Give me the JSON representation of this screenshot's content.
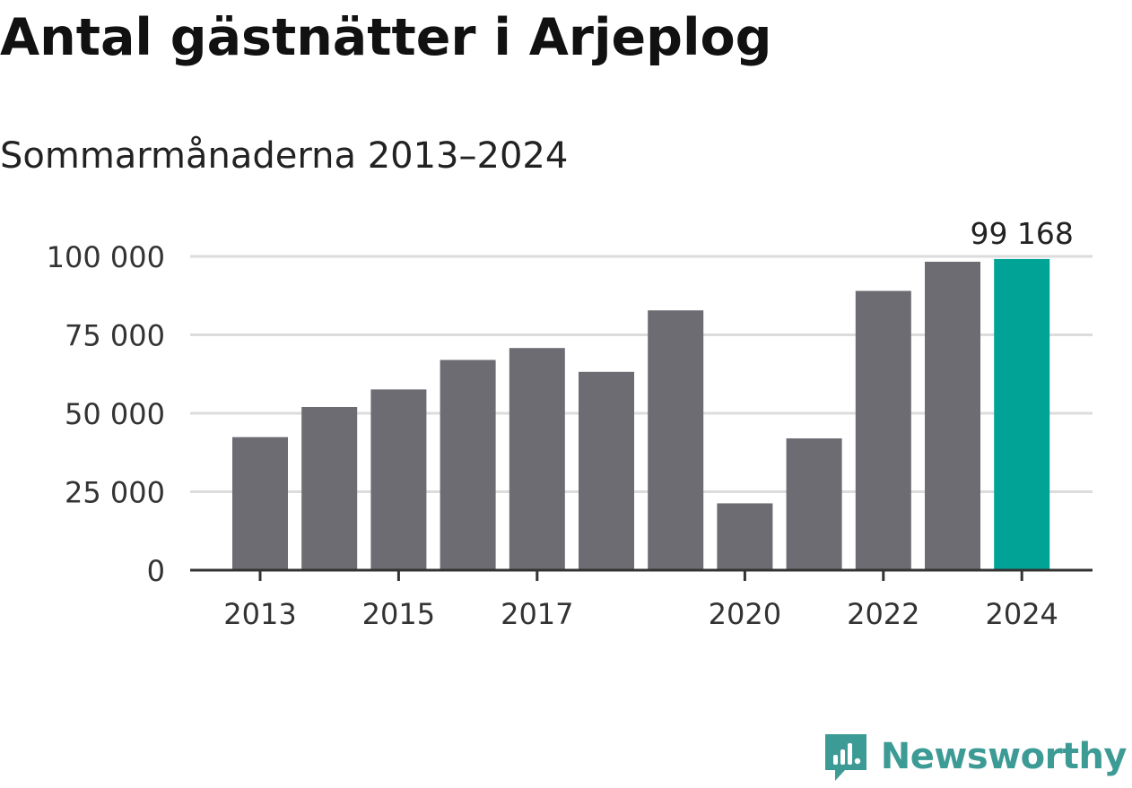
{
  "header": {
    "title": "Antal gästnätter i Arjeplog",
    "subtitle": "Sommarmånaderna 2013–2024"
  },
  "colors": {
    "bar": "#6d6c72",
    "highlight": "#00a396",
    "grid": "#dcdcdc",
    "axis": "#333333",
    "brand": "#3d9b96"
  },
  "chart_data": {
    "type": "bar",
    "categories": [
      "2013",
      "2014",
      "2015",
      "2016",
      "2017",
      "2018",
      "2019",
      "2020",
      "2021",
      "2022",
      "2023",
      "2024"
    ],
    "values": [
      42400,
      52000,
      57600,
      67000,
      70800,
      63200,
      82800,
      21300,
      42000,
      89000,
      98300,
      99168
    ],
    "x_tick_labels": [
      "2013",
      "",
      "2015",
      "",
      "2017",
      "",
      "",
      "2020",
      "",
      "2022",
      "",
      "2024"
    ],
    "y_ticks": [
      0,
      25000,
      50000,
      75000,
      100000
    ],
    "y_tick_labels": [
      "0",
      "25 000",
      "50 000",
      "75 000",
      "100 000"
    ],
    "ylim": [
      0,
      100000
    ],
    "highlight_index": 11,
    "data_label": "99 168",
    "grid": true,
    "xlabel": "",
    "ylabel": ""
  },
  "brand": {
    "name": "Newsworthy",
    "logo_icon": "newsworthy-logo-icon"
  }
}
